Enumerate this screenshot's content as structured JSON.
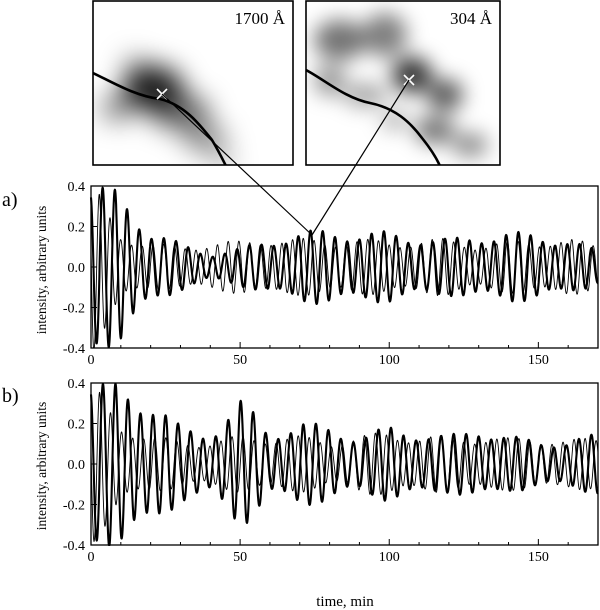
{
  "insets": [
    {
      "label": "1700 Å"
    },
    {
      "label": "304 Å"
    }
  ],
  "chart_data": [
    {
      "type": "line",
      "panel_label": "a)",
      "xlabel": "",
      "ylabel": "intensity, arbitrary units",
      "xlim": [
        0,
        170
      ],
      "ylim": [
        -0.4,
        0.4
      ],
      "x_ticks": [
        0,
        50,
        100,
        150
      ],
      "y_ticks": [
        -0.4,
        -0.2,
        0.0,
        0.2,
        0.4
      ],
      "y_tick_labels": [
        "-0.4",
        "-0.2",
        "0.0",
        "0.2",
        "0.4"
      ],
      "grid": false,
      "series": [
        {
          "style": "thick",
          "color": "#000000",
          "approx_period_min": 4.1,
          "envelope_x": [
            0,
            3,
            10,
            20,
            30,
            40,
            50,
            60,
            70,
            80,
            90,
            100,
            110,
            120,
            130,
            140,
            150,
            160,
            170
          ],
          "envelope_amp": [
            0.36,
            0.34,
            0.33,
            0.16,
            0.1,
            0.06,
            0.08,
            0.12,
            0.15,
            0.16,
            0.15,
            0.15,
            0.13,
            0.12,
            0.14,
            0.15,
            0.14,
            0.12,
            0.07
          ]
        },
        {
          "style": "thin",
          "color": "#000000",
          "approx_period_min": 3.6,
          "envelope_x": [
            0,
            3,
            10,
            20,
            30,
            40,
            50,
            60,
            70,
            80,
            90,
            100,
            110,
            120,
            130,
            140,
            150,
            160,
            170
          ],
          "envelope_amp": [
            0.38,
            0.3,
            0.15,
            0.1,
            0.09,
            0.11,
            0.11,
            0.13,
            0.12,
            0.12,
            0.12,
            0.11,
            0.12,
            0.12,
            0.1,
            0.11,
            0.12,
            0.12,
            0.1
          ]
        }
      ]
    },
    {
      "type": "line",
      "panel_label": "b)",
      "xlabel": "time, min",
      "ylabel": "intensity, arbitrary units",
      "xlim": [
        0,
        170
      ],
      "ylim": [
        -0.4,
        0.4
      ],
      "x_ticks": [
        0,
        50,
        100,
        150
      ],
      "y_ticks": [
        -0.4,
        -0.2,
        0.0,
        0.2,
        0.4
      ],
      "y_tick_labels": [
        "-0.4",
        "-0.2",
        "0.0",
        "0.2",
        "0.4"
      ],
      "grid": false,
      "series": [
        {
          "style": "thick",
          "color": "#000000",
          "approx_period_min": 4.2,
          "envelope_x": [
            0,
            3,
            10,
            20,
            30,
            40,
            50,
            55,
            60,
            70,
            80,
            90,
            100,
            110,
            120,
            130,
            140,
            150,
            160,
            170
          ],
          "envelope_amp": [
            0.36,
            0.34,
            0.35,
            0.28,
            0.16,
            0.14,
            0.27,
            0.22,
            0.14,
            0.18,
            0.16,
            0.12,
            0.16,
            0.14,
            0.12,
            0.16,
            0.12,
            0.1,
            0.1,
            0.13
          ]
        },
        {
          "style": "thin",
          "color": "#000000",
          "approx_period_min": 3.7,
          "envelope_x": [
            0,
            3,
            10,
            20,
            30,
            40,
            50,
            60,
            70,
            80,
            90,
            100,
            110,
            120,
            130,
            140,
            150,
            160,
            170
          ],
          "envelope_amp": [
            0.34,
            0.3,
            0.18,
            0.12,
            0.1,
            0.1,
            0.12,
            0.12,
            0.12,
            0.1,
            0.12,
            0.14,
            0.12,
            0.12,
            0.12,
            0.11,
            0.12,
            0.1,
            0.12
          ]
        }
      ]
    }
  ]
}
